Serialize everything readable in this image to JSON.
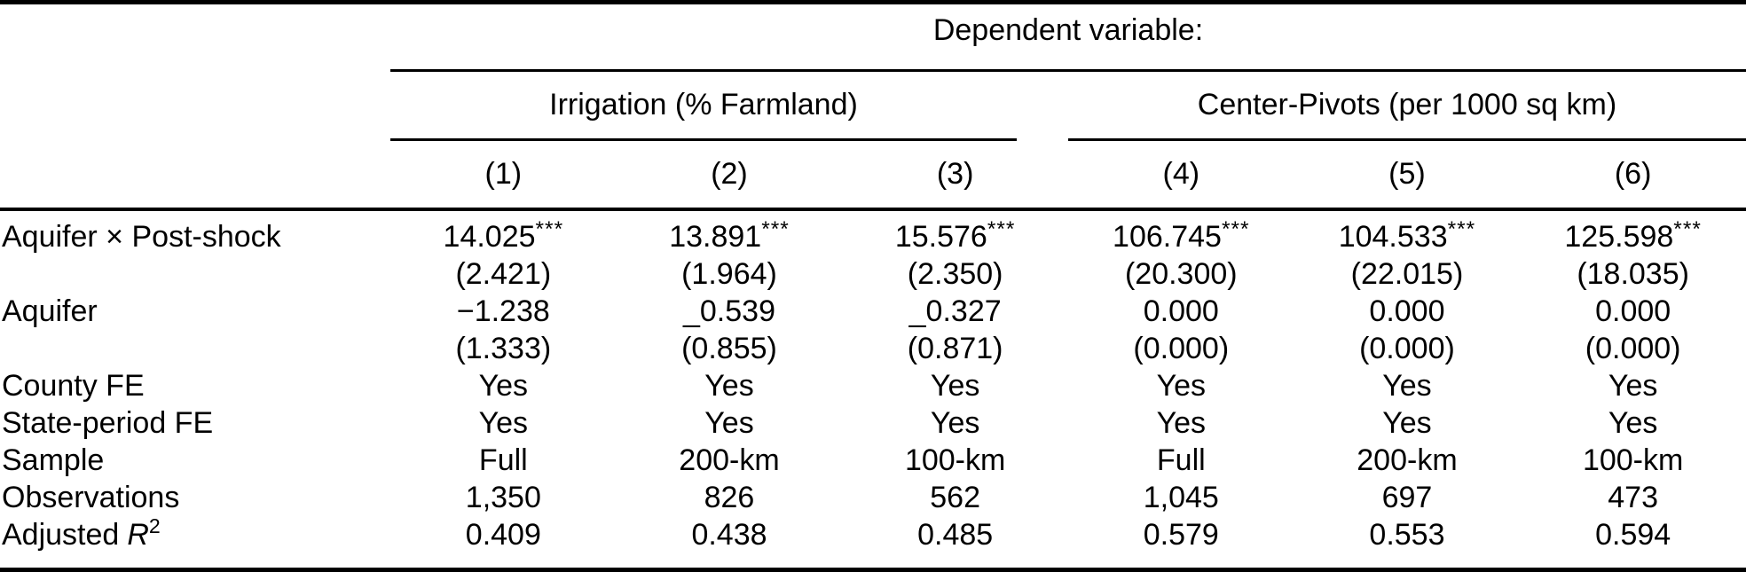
{
  "table": {
    "dependent_variable_label": "Dependent variable:",
    "groups": [
      {
        "label": "Irrigation (% Farmland)"
      },
      {
        "label": "Center-Pivots (per 1000 sq km)"
      }
    ],
    "column_numbers": [
      "(1)",
      "(2)",
      "(3)",
      "(4)",
      "(5)",
      "(6)"
    ],
    "body_rows": [
      {
        "label": "Aquifer × Post-shock",
        "cells": [
          {
            "v": "14.025",
            "stars": "***"
          },
          {
            "v": "13.891",
            "stars": "***"
          },
          {
            "v": "15.576",
            "stars": "***"
          },
          {
            "v": "106.745",
            "stars": "***"
          },
          {
            "v": "104.533",
            "stars": "***"
          },
          {
            "v": "125.598",
            "stars": "***"
          }
        ]
      },
      {
        "label": "",
        "cells": [
          "(2.421)",
          "(1.964)",
          "(2.350)",
          "(20.300)",
          "(22.015)",
          "(18.035)"
        ]
      },
      {
        "label": "Aquifer",
        "cells": [
          "−1.238",
          "_0.539",
          "_0.327",
          "0.000",
          "0.000",
          "0.000"
        ]
      },
      {
        "label": "",
        "cells": [
          "(1.333)",
          "(0.855)",
          "(0.871)",
          "(0.000)",
          "(0.000)",
          "(0.000)"
        ]
      },
      {
        "label": "County FE",
        "cells": [
          "Yes",
          "Yes",
          "Yes",
          "Yes",
          "Yes",
          "Yes"
        ]
      },
      {
        "label": "State-period FE",
        "cells": [
          "Yes",
          "Yes",
          "Yes",
          "Yes",
          "Yes",
          "Yes"
        ]
      },
      {
        "label": "Sample",
        "cells": [
          "Full",
          "200-km",
          "100-km",
          "Full",
          "200-km",
          "100-km"
        ]
      },
      {
        "label": "Observations",
        "cells": [
          "1,350",
          "826",
          "562",
          "1,045",
          "697",
          "473"
        ]
      },
      {
        "label_pre": "Adjusted",
        "label_sym": "R",
        "label_sup": "2",
        "cells": [
          "0.409",
          "0.438",
          "0.485",
          "0.579",
          "0.553",
          "0.594"
        ]
      }
    ]
  }
}
